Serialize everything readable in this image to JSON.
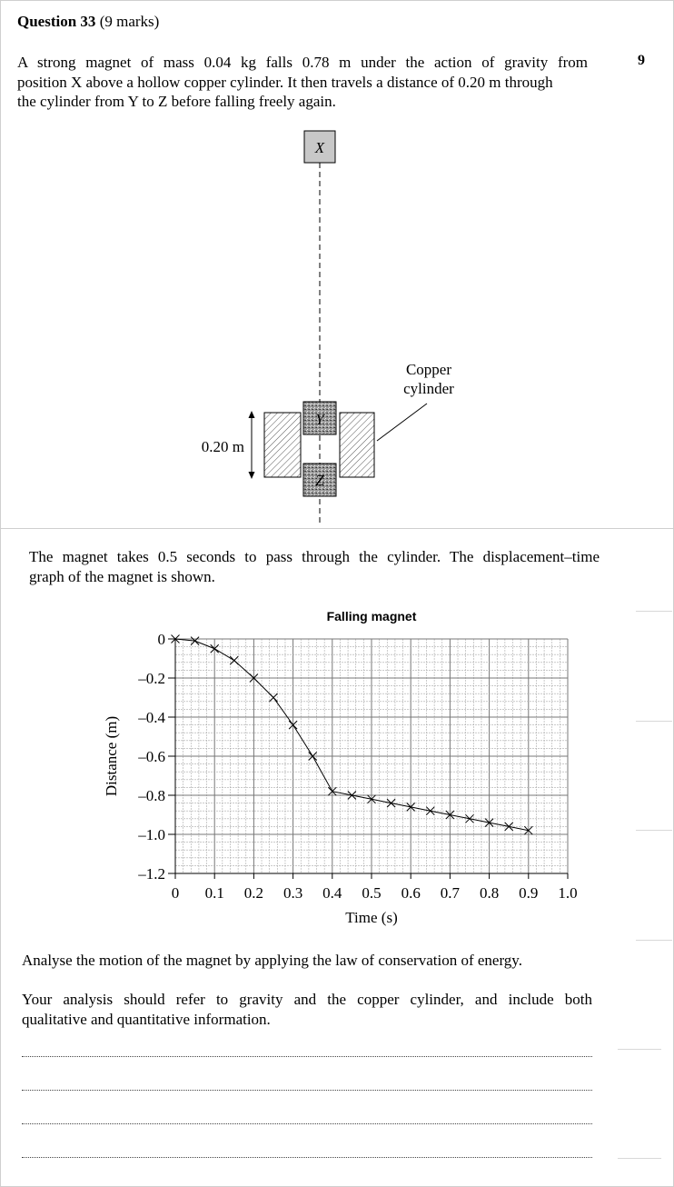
{
  "question": {
    "title_bold": "Question 33",
    "title_marks": "(9 marks)",
    "page_number": "9",
    "intro_line1": "A strong magnet of mass 0.04 kg falls 0.78 m under the action of gravity from",
    "intro_line2": "position X above a hollow copper cylinder. It then travels a distance of 0.20 m through",
    "intro_line3": "the cylinder from Y to Z before falling freely again."
  },
  "diagram": {
    "label_x": "X",
    "label_y": "Y",
    "label_z": "Z",
    "distance_label": "0.20 m",
    "cylinder_label_line1": "Copper",
    "cylinder_label_line2": "cylinder"
  },
  "graph_intro": {
    "line1": "The magnet takes 0.5 seconds to pass through the cylinder. The displacement–time",
    "line2": "graph of the magnet is shown."
  },
  "chart_data": {
    "type": "line",
    "title": "Falling magnet",
    "xlabel": "Time (s)",
    "ylabel": "Distance (m)",
    "xlim": [
      0,
      1.0
    ],
    "ylim": [
      -1.2,
      0
    ],
    "grid": true,
    "x_ticks": [
      "0",
      "0.1",
      "0.2",
      "0.3",
      "0.4",
      "0.5",
      "0.6",
      "0.7",
      "0.8",
      "0.9",
      "1.0"
    ],
    "y_ticks": [
      "0",
      "–0.2",
      "–0.4",
      "–0.6",
      "–0.8",
      "–1.0",
      "–1.2"
    ],
    "x": [
      0,
      0.05,
      0.1,
      0.15,
      0.2,
      0.25,
      0.3,
      0.35,
      0.4,
      0.45,
      0.5,
      0.55,
      0.6,
      0.65,
      0.7,
      0.75,
      0.8,
      0.85,
      0.9
    ],
    "y": [
      0,
      -0.01,
      -0.05,
      -0.11,
      -0.2,
      -0.3,
      -0.44,
      -0.6,
      -0.78,
      -0.8,
      -0.82,
      -0.84,
      -0.86,
      -0.88,
      -0.9,
      -0.92,
      -0.94,
      -0.96,
      -0.98
    ]
  },
  "task": {
    "line1": "Analyse the motion of the magnet by applying the law of conservation of energy.",
    "line2": "Your analysis should refer to gravity and the copper cylinder, and include both",
    "line3": "qualitative and quantitative information."
  }
}
